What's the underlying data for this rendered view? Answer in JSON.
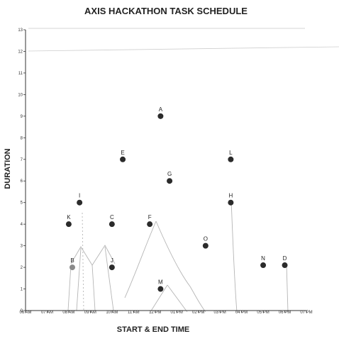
{
  "chart_data": {
    "type": "scatter",
    "title": "AXIS HACKATHON TASK SCHEDULE",
    "xlabel": "START & END TIME",
    "ylabel": "DURATION",
    "x_ticks": [
      "06 AM",
      "07 AM",
      "08 AM",
      "09 AM",
      "10 AM",
      "11 AM",
      "12 PM",
      "01 PM",
      "02 PM",
      "03 PM",
      "04 PM",
      "05 PM",
      "06 PM",
      "07 PM"
    ],
    "y_ticks": [
      0,
      1,
      2,
      3,
      4,
      5,
      6,
      7,
      8,
      9,
      10,
      11,
      12,
      13
    ],
    "xlim": [
      "06 AM",
      "07 PM"
    ],
    "ylim": [
      0,
      13
    ],
    "grid": false,
    "points": [
      {
        "label": "A",
        "x": "12:15 PM",
        "y": 9
      },
      {
        "label": "B",
        "x": "08:10 AM",
        "y": 2
      },
      {
        "label": "C",
        "x": "10:00 AM",
        "y": 4
      },
      {
        "label": "D",
        "x": "06:00 PM",
        "y": 2.1
      },
      {
        "label": "E",
        "x": "10:30 AM",
        "y": 7
      },
      {
        "label": "F",
        "x": "11:45 AM",
        "y": 4
      },
      {
        "label": "G",
        "x": "12:40 PM",
        "y": 6
      },
      {
        "label": "H",
        "x": "03:30 PM",
        "y": 5
      },
      {
        "label": "I",
        "x": "08:30 AM",
        "y": 5
      },
      {
        "label": "J",
        "x": "10:00 AM",
        "y": 2
      },
      {
        "label": "K",
        "x": "08:00 AM",
        "y": 4
      },
      {
        "label": "L",
        "x": "03:30 PM",
        "y": 7
      },
      {
        "label": "M",
        "x": "12:15 PM",
        "y": 1
      },
      {
        "label": "N",
        "x": "05:00 PM",
        "y": 2.1
      },
      {
        "label": "O",
        "x": "02:20 PM",
        "y": 3
      }
    ],
    "colors": {
      "point": "#2b2b2b",
      "point_b": "#8a8a8a",
      "axis": "#333333",
      "sketch": "#b5b5b5"
    }
  }
}
